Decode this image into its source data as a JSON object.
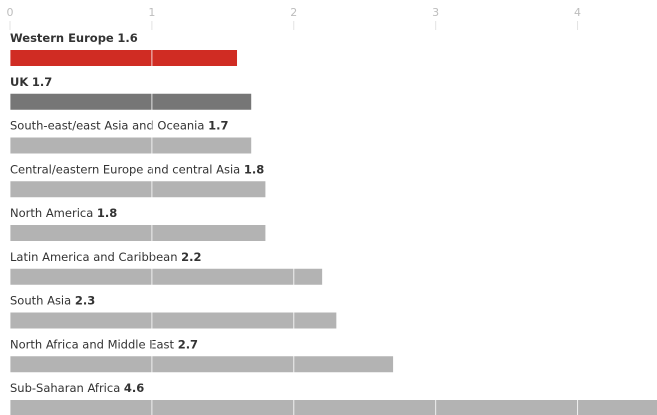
{
  "chart_data": {
    "type": "barh",
    "categories": [
      "Western Europe",
      "UK",
      "South-east/east Asia and Oceania",
      "Central/eastern Europe and central Asia",
      "North America",
      "Latin America and Caribbean",
      "South Asia",
      "North Africa and Middle East",
      "Sub-Saharan Africa"
    ],
    "values": [
      1.6,
      1.7,
      1.7,
      1.8,
      1.8,
      2.2,
      2.3,
      2.7,
      4.6
    ],
    "colors": [
      "#d02c23",
      "#767676",
      "#b3b3b3",
      "#b3b3b3",
      "#b3b3b3",
      "#b3b3b3",
      "#b3b3b3",
      "#b3b3b3",
      "#b3b3b3"
    ],
    "bold_labels": [
      true,
      true,
      false,
      false,
      false,
      false,
      false,
      false,
      false
    ],
    "xlim": [
      0,
      4.56
    ],
    "xticks": [
      0,
      1,
      2,
      3,
      4
    ],
    "grid": true
  }
}
